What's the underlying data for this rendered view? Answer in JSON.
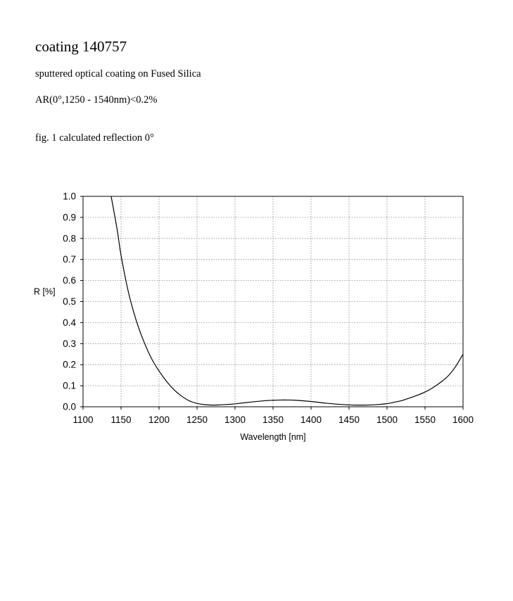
{
  "document": {
    "title": "coating 140757",
    "description": "sputtered optical coating on Fused Silica",
    "spec": "AR(0°,1250 - 1540nm)<0.2%",
    "figure_caption": "fig. 1 calculated reflection 0°"
  },
  "chart_data": {
    "type": "line",
    "title": "",
    "xlabel": "Wavelength [nm]",
    "ylabel": "R [%]",
    "xlim": [
      1100,
      1600
    ],
    "ylim": [
      0.0,
      1.0
    ],
    "xticks": [
      1100,
      1150,
      1200,
      1250,
      1300,
      1350,
      1400,
      1450,
      1500,
      1550,
      1600
    ],
    "yticks": [
      0.0,
      0.1,
      0.2,
      0.3,
      0.4,
      0.5,
      0.6,
      0.7,
      0.8,
      0.9,
      1.0
    ],
    "ytick_labels": [
      "0.0",
      "0.1",
      "0.2",
      "0.3",
      "0.4",
      "0.5",
      "0.6",
      "0.7",
      "0.8",
      "0.9",
      "1.0"
    ],
    "grid": true,
    "line_color": "#000000",
    "grid_color": "#888888",
    "series": [
      {
        "x": [
          1137,
          1145,
          1150,
          1160,
          1170,
          1180,
          1190,
          1200,
          1210,
          1220,
          1230,
          1240,
          1250,
          1260,
          1270,
          1280,
          1290,
          1300,
          1320,
          1340,
          1350,
          1360,
          1370,
          1380,
          1400,
          1420,
          1440,
          1450,
          1460,
          1470,
          1480,
          1490,
          1500,
          1510,
          1520,
          1530,
          1540,
          1550,
          1560,
          1570,
          1580,
          1590,
          1600
        ],
        "y": [
          1.0,
          0.84,
          0.72,
          0.54,
          0.41,
          0.31,
          0.23,
          0.17,
          0.12,
          0.08,
          0.05,
          0.028,
          0.016,
          0.01,
          0.008,
          0.009,
          0.011,
          0.014,
          0.022,
          0.029,
          0.031,
          0.032,
          0.032,
          0.031,
          0.025,
          0.017,
          0.011,
          0.009,
          0.008,
          0.008,
          0.009,
          0.011,
          0.015,
          0.022,
          0.03,
          0.042,
          0.055,
          0.07,
          0.09,
          0.115,
          0.145,
          0.19,
          0.25
        ]
      }
    ]
  }
}
